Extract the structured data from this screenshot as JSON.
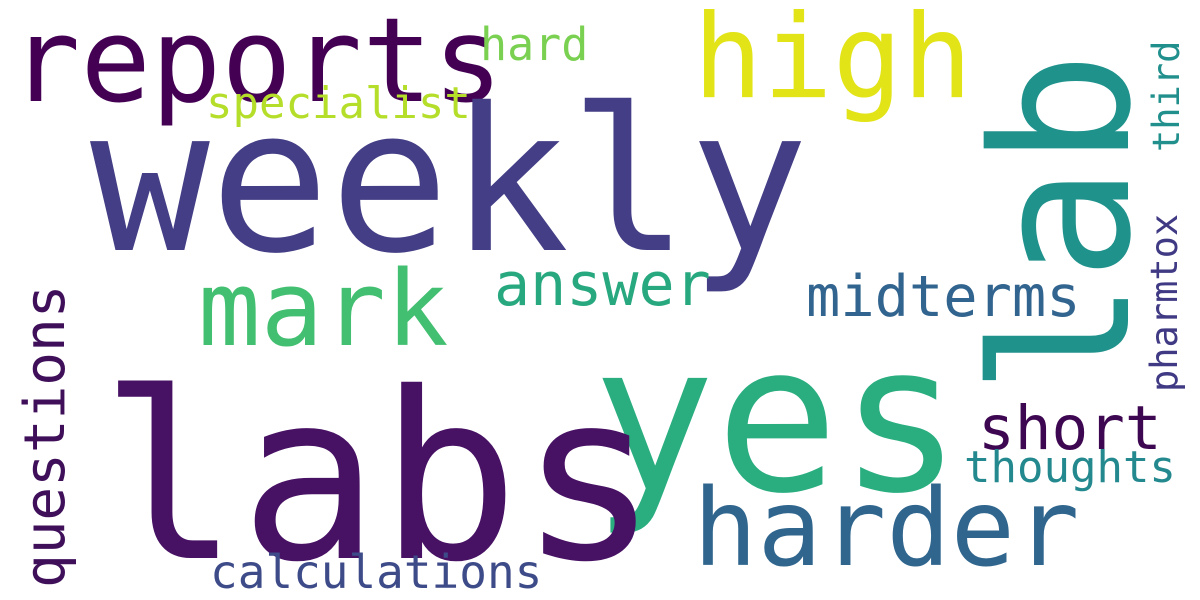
{
  "words": {
    "weekly": {
      "text": "weekly",
      "color": "#433e85"
    },
    "labs": {
      "text": "labs",
      "color": "#471164"
    },
    "yes": {
      "text": "yes",
      "color": "#2aae80"
    },
    "lab": {
      "text": "lab",
      "color": "#20928c"
    },
    "reports": {
      "text": "reports",
      "color": "#440154"
    },
    "high": {
      "text": "high",
      "color": "#e2e418"
    },
    "mark": {
      "text": "mark",
      "color": "#43bf71"
    },
    "harder": {
      "text": "harder",
      "color": "#30668e"
    },
    "answer": {
      "text": "answer",
      "color": "#28a87f"
    },
    "midterms": {
      "text": "midterms",
      "color": "#31648e"
    },
    "short": {
      "text": "short",
      "color": "#3e0751"
    },
    "questions": {
      "text": "questions",
      "color": "#3f0f5a"
    },
    "calculations": {
      "text": "calculations",
      "color": "#3d4b89"
    },
    "thoughts": {
      "text": "thoughts",
      "color": "#23898e"
    },
    "specialist": {
      "text": "specialist",
      "color": "#b5de2b"
    },
    "hard": {
      "text": "hard",
      "color": "#7ad151"
    },
    "pharmtox": {
      "text": "pharmtox",
      "color": "#3f3a83"
    },
    "third": {
      "text": "third",
      "color": "#21908d"
    }
  }
}
